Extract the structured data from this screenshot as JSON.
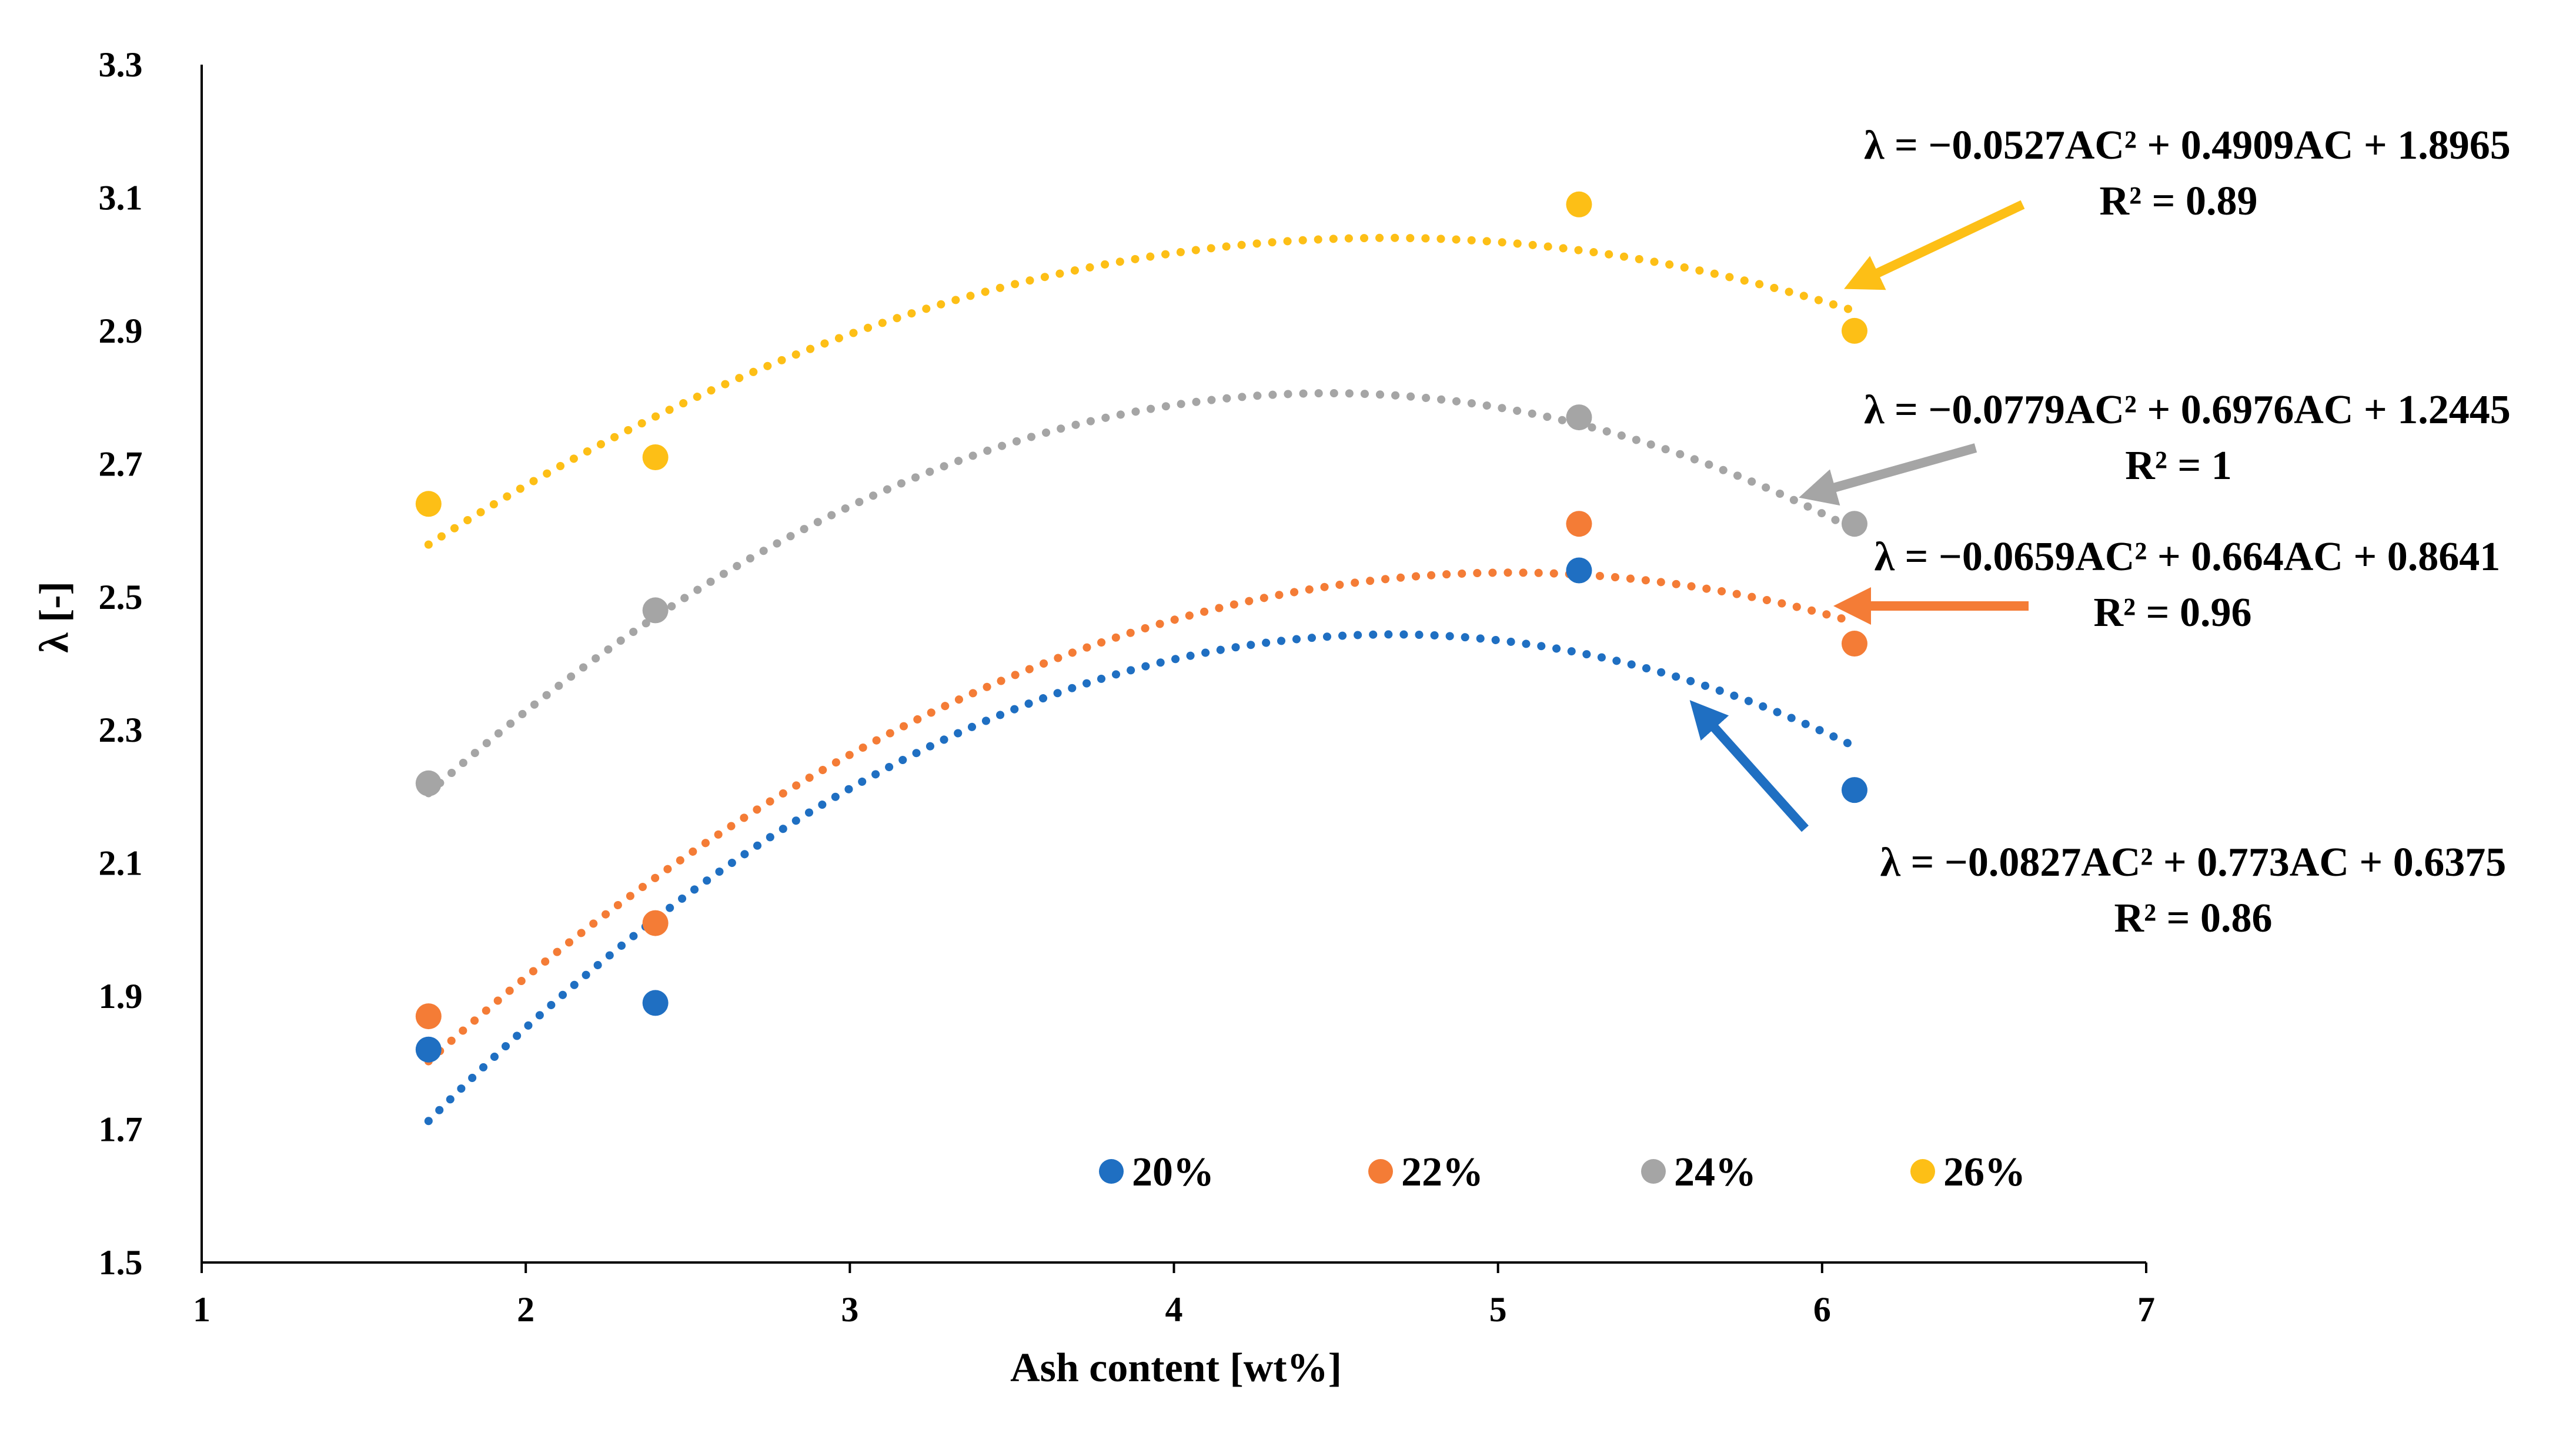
{
  "chart_data": {
    "type": "scatter",
    "xlabel": "Ash content [wt%]",
    "ylabel": "λ [-]",
    "xlim": [
      1,
      7
    ],
    "ylim": [
      1.5,
      3.3
    ],
    "xticks": [
      "1",
      "2",
      "3",
      "4",
      "5",
      "6",
      "7"
    ],
    "yticks": [
      "1.5",
      "1.7",
      "1.9",
      "2.1",
      "2.3",
      "2.5",
      "2.7",
      "2.9",
      "3.1",
      "3.3"
    ],
    "legend_position": "bottom-right",
    "series": [
      {
        "name": "20%",
        "color": "#1f6fc2",
        "points": [
          [
            1.7,
            1.82
          ],
          [
            2.4,
            1.89
          ],
          [
            5.25,
            2.54
          ],
          [
            6.1,
            2.21
          ]
        ],
        "fit": {
          "a": -0.0827,
          "b": 0.773,
          "c": 0.6375,
          "xmin": 1.7,
          "xmax": 6.1
        },
        "equation": "λ = −0.0827AC² + 0.773AC + 0.6375",
        "r2": "R² = 0.86"
      },
      {
        "name": "22%",
        "color": "#f47c36",
        "points": [
          [
            1.7,
            1.87
          ],
          [
            2.4,
            2.01
          ],
          [
            5.25,
            2.61
          ],
          [
            6.1,
            2.43
          ]
        ],
        "fit": {
          "a": -0.0659,
          "b": 0.664,
          "c": 0.8641,
          "xmin": 1.7,
          "xmax": 6.1
        },
        "equation": "λ = −0.0659AC² + 0.664AC + 0.8641",
        "r2": "R² = 0.96"
      },
      {
        "name": "24%",
        "color": "#a5a5a5",
        "points": [
          [
            1.7,
            2.22
          ],
          [
            2.4,
            2.48
          ],
          [
            5.25,
            2.77
          ],
          [
            6.1,
            2.61
          ]
        ],
        "fit": {
          "a": -0.0779,
          "b": 0.6976,
          "c": 1.2445,
          "xmin": 1.7,
          "xmax": 6.1
        },
        "equation": "λ = −0.0779AC² + 0.6976AC + 1.2445",
        "r2": "R² = 1"
      },
      {
        "name": "26%",
        "color": "#fdbf16",
        "points": [
          [
            1.7,
            2.64
          ],
          [
            2.4,
            2.71
          ],
          [
            5.25,
            3.09
          ],
          [
            6.1,
            2.9
          ]
        ],
        "fit": {
          "a": -0.0527,
          "b": 0.4909,
          "c": 1.8965,
          "xmin": 1.7,
          "xmax": 6.1
        },
        "equation": "λ = −0.0527AC² + 0.4909AC + 1.8965",
        "r2": "R² = 0.89"
      }
    ]
  }
}
